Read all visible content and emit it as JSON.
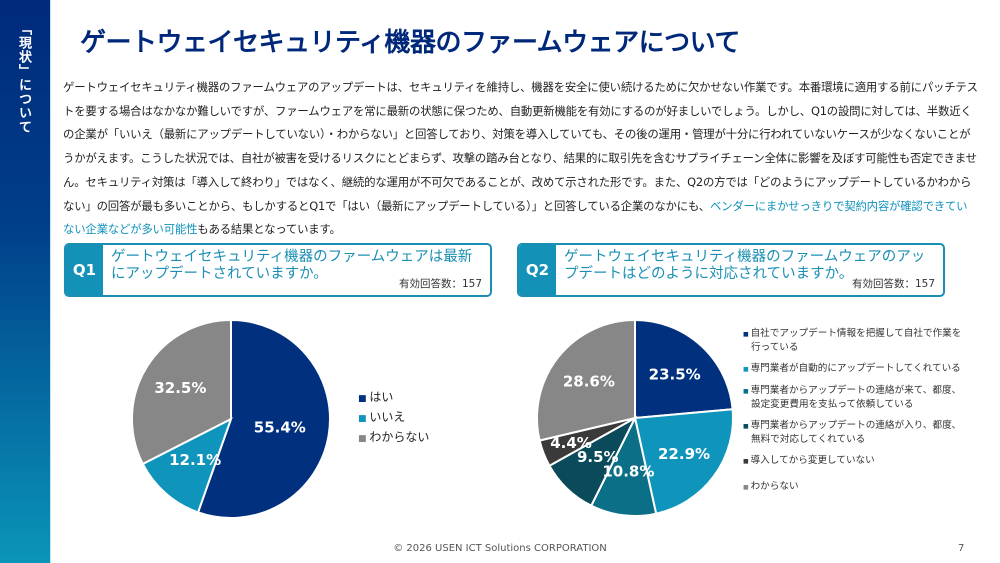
{
  "sidebar": {
    "label": "「現状」について"
  },
  "title": "ゲートウェイセキュリティ機器のファームウェアについて",
  "body": {
    "text": "ゲートウェイセキュリティ機器のファームウェアのアップデートは、セキュリティを維持し、機器を安全に使い続けるために欠かせない作業です。本番環境に適用する前にパッチテストを要する場合はなかなか難しいですが、ファームウェアを常に最新の状態に保つため、自動更新機能を有効にするのが好ましいでしょう。しかし、Q1の設問に対しては、半数近くの企業が「いいえ（最新にアップデートしていない）・わからない」と回答しており、対策を導入していても、その後の運用・管理が十分に行われていないケースが少なくないことがうかがえます。こうした状況では、自社が被害を受けるリスクにとどまらず、攻撃の踏み台となり、結果的に取引先を含むサプライチェーン全体に影響を及ぼす可能性も否定できません。セキュリティ対策は「導入して終わり」ではなく、継続的な運用が不可欠であることが、改めて示された形です。また、Q2の方では「どのようにアップデートしているかわからない」の回答が最も多いことから、もしかするとQ1で「はい（最新にアップデートしている）」と回答している企業のなかにも、",
    "highlight": "ベンダーにまかせっきりで契約内容が確認できていない企業などが多い可能性",
    "tail": "もある結果となっています。"
  },
  "q1": {
    "tag": "Q1",
    "question": "ゲートウェイセキュリティ機器のファームウェアは最新にアップデートされていますか。",
    "count": "有効回答数：157"
  },
  "q2": {
    "tag": "Q2",
    "question": "ゲートウェイセキュリティ機器のファームウェアのアップデートはどのように対応されていますか。",
    "count": "有効回答数：157"
  },
  "chart_data": [
    {
      "type": "pie",
      "categories": [
        "はい",
        "いいえ",
        "わからない"
      ],
      "values": [
        55.4,
        12.1,
        32.5
      ],
      "labels": [
        "55.4%",
        "12.1%",
        "32.5%"
      ],
      "colors": [
        "#00307e",
        "#0f95bb",
        "#878787"
      ],
      "legend": "right"
    },
    {
      "type": "pie",
      "categories": [
        "自社でアップデート情報を把握して自社で作業を行っている",
        "専門業者が自動的にアップデートしてくれている",
        "専門業者からアップデートの連絡が来て、都度、設定変更費用を支払って依頼している",
        "専門業者からアップデートの連絡が入り、都度、無料で対応してくれている",
        "導入してから変更していない",
        "わからない"
      ],
      "values": [
        23.5,
        22.9,
        10.8,
        9.5,
        4.4,
        28.6
      ],
      "labels": [
        "23.5%",
        "22.9%",
        "10.8%",
        "9.5%",
        "4.4%",
        "28.6%"
      ],
      "colors": [
        "#00307e",
        "#0f95bb",
        "#0b6f88",
        "#0b4a5a",
        "#3a3a3a",
        "#878787"
      ],
      "legend": "right"
    }
  ],
  "footer": {
    "copyright": "© 2026 USEN ICT Solutions CORPORATION",
    "page": "7"
  }
}
